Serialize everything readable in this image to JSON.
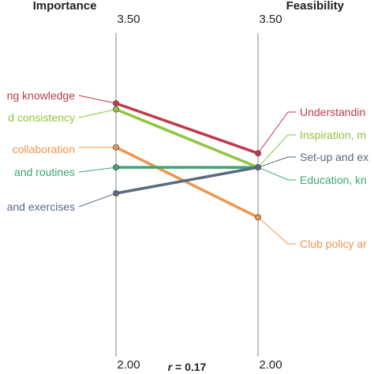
{
  "chart_data": {
    "type": "line",
    "axes": [
      {
        "name": "Importance",
        "max_label": "3.50",
        "min_label": "2.00"
      },
      {
        "name": "Feasibility",
        "max_label": "3.50",
        "min_label": "2.00"
      }
    ],
    "ylim": [
      2.0,
      3.5
    ],
    "grid": false,
    "legend": "none",
    "statistic": {
      "symbol": "r",
      "value_text": " = 0.17"
    },
    "series": [
      {
        "left_label": "ng knowledge",
        "right_label": "Understandin",
        "importance": 3.2,
        "feasibility": 2.95,
        "color": "#c0394b"
      },
      {
        "left_label": "d consistency",
        "right_label": "Inspiration, m",
        "importance": 3.17,
        "feasibility": 2.88,
        "color": "#8dc63f"
      },
      {
        "left_label": "collaboration",
        "right_label": "Club policy ar",
        "importance": 2.98,
        "feasibility": 2.63,
        "color": "#f0944d"
      },
      {
        "left_label": "and routines",
        "right_label": "Education, kn",
        "importance": 2.88,
        "feasibility": 2.88,
        "color": "#3aa873"
      },
      {
        "left_label": "and exercises",
        "right_label": "Set-up and ex",
        "importance": 2.75,
        "feasibility": 2.88,
        "color": "#5a6a7e"
      }
    ]
  }
}
